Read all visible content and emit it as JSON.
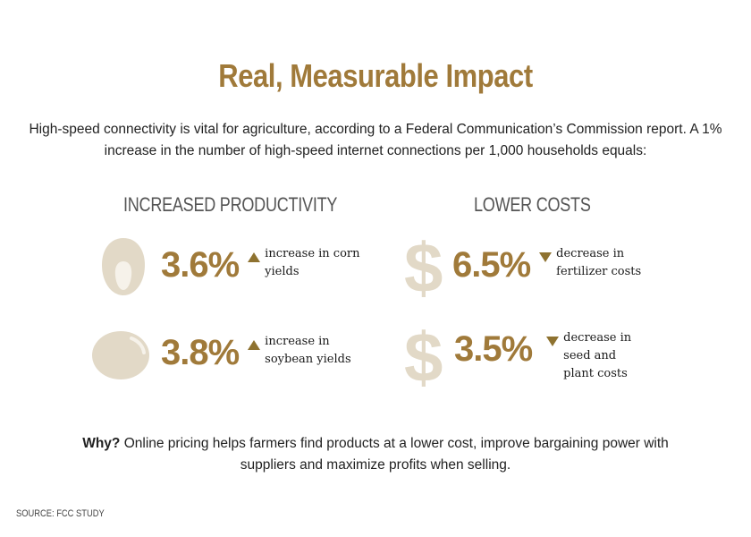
{
  "title": "Real, Measurable Impact",
  "intro": "High-speed connectivity is vital for agriculture, according to a Federal Communication’s Commission report. A 1% increase in the number of high-speed internet connections per 1,000 households equals:",
  "sections": {
    "productivity": {
      "heading": "INCREASED PRODUCTIVITY",
      "items": [
        {
          "icon": "corn-kernel-icon",
          "value": "3.6%",
          "direction": "up",
          "label": "increase in corn yields"
        },
        {
          "icon": "soybean-icon",
          "value": "3.8%",
          "direction": "up",
          "label": "increase in soybean yields"
        }
      ]
    },
    "costs": {
      "heading": "LOWER COSTS",
      "items": [
        {
          "icon": "dollar-icon",
          "value": "6.5%",
          "direction": "down",
          "label": "decrease in fertilizer costs"
        },
        {
          "icon": "dollar-icon",
          "value": "3.5%",
          "direction": "down",
          "label": "decrease in seed and plant costs"
        }
      ]
    }
  },
  "dollar_glyph": "$",
  "why": {
    "lead": "Why?",
    "text": " Online pricing helps farmers find products at a lower cost, improve bargaining power with suppliers and maximize profits when selling."
  },
  "source": "SOURCE: FCC STUDY",
  "colors": {
    "accent": "#a07a3a",
    "icon": "#e2d9c7",
    "heading": "#555555"
  }
}
